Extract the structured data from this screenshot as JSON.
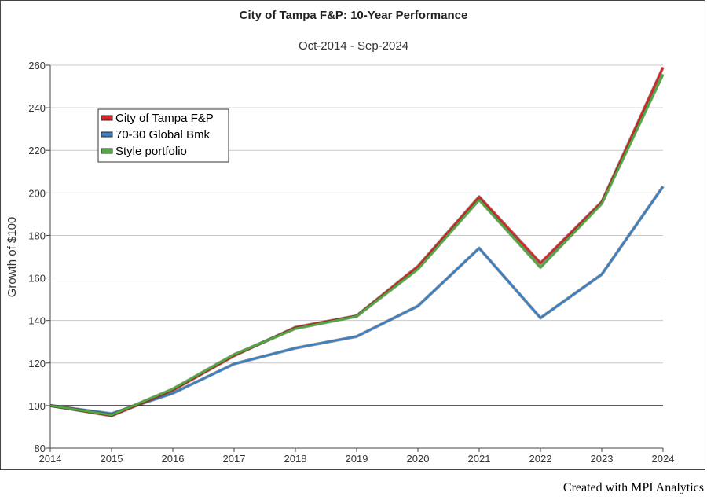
{
  "chart_data": {
    "type": "line",
    "title": "City of Tampa F&P: 10-Year Performance",
    "subtitle": "Oct-2014 - Sep-2024",
    "xlabel": "",
    "ylabel": "Growth of $100",
    "x": [
      "2014",
      "2015",
      "2016",
      "2017",
      "2018",
      "2019",
      "2020",
      "2021",
      "2022",
      "2023",
      "2024"
    ],
    "ylim": [
      80,
      260
    ],
    "yticks": [
      80,
      100,
      120,
      140,
      160,
      180,
      200,
      220,
      240,
      260
    ],
    "grid": true,
    "reference_line": 100,
    "legend_position": "top-left",
    "series": [
      {
        "name": "City of Tampa F&P",
        "color": "#d62728",
        "values": [
          100,
          95.2,
          107.2,
          123.4,
          136.8,
          142.2,
          165.5,
          198.2,
          167.0,
          195.8,
          259.0
        ]
      },
      {
        "name": "70-30 Global Bmk",
        "color": "#3a7fc1",
        "values": [
          100,
          96.2,
          105.8,
          119.6,
          127.0,
          132.5,
          146.8,
          174.0,
          141.2,
          161.7,
          203.0
        ]
      },
      {
        "name": "Style portfolio",
        "color": "#4daa3c",
        "values": [
          100,
          95.6,
          107.8,
          124.0,
          136.2,
          142.0,
          164.2,
          196.8,
          165.0,
          195.0,
          255.8
        ]
      }
    ]
  },
  "footer": {
    "credit": "Created with MPI Analytics"
  }
}
